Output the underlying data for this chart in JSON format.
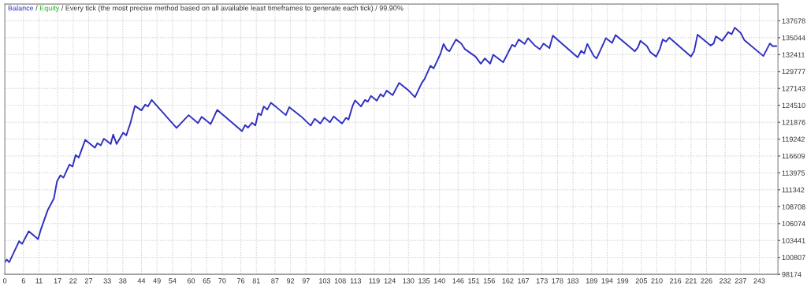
{
  "chart_data": {
    "type": "line",
    "title": "Every tick (the most precise method based on all available least timeframes to generate each tick) / 99.90%",
    "series": [
      {
        "name": "Balance",
        "color": "#3030c0",
        "x": [
          0,
          0.6,
          1.4,
          4.6,
          5.6,
          7.7,
          10.7,
          11.7,
          13.8,
          15.8,
          16.8,
          17.9,
          18.9,
          20.8,
          21.8,
          22.8,
          23.8,
          25.9,
          29.0,
          29.8,
          30.9,
          31.9,
          34.1,
          34.9,
          36.0,
          38.1,
          39.1,
          40.4,
          41.9,
          44.0,
          45.2,
          46.1,
          47.3,
          55.3,
          59.2,
          62.2,
          63.4,
          66.3,
          68.4,
          76.4,
          77.4,
          78.3,
          79.6,
          80.7,
          81.6,
          82.5,
          83.4,
          84.5,
          85.7,
          87.2,
          90.5,
          91.6,
          95.6,
          98.5,
          99.8,
          101.6,
          102.9,
          104.7,
          105.9,
          108.6,
          109.9,
          110.7,
          112.0,
          112.8,
          114.7,
          116.0,
          116.9,
          117.9,
          119.8,
          121.0,
          121.9,
          123.0,
          124.9,
          127.0,
          130.1,
          132.1,
          134.3,
          135.2,
          137.1,
          138.1,
          140.3,
          141.3,
          142.3,
          143.2,
          145.3,
          147.0,
          148.2,
          151.6,
          153.3,
          154.6,
          156.3,
          157.3,
          160.5,
          163.4,
          164.3,
          165.5,
          167.4,
          168.5,
          170.6,
          172.3,
          173.5,
          175.4,
          176.5,
          184.5,
          185.6,
          186.6,
          187.6,
          189.7,
          190.6,
          193.6,
          195.6,
          196.7,
          202.9,
          203.9,
          204.7,
          206.8,
          207.9,
          209.8,
          211.0,
          211.9,
          212.9,
          214.0,
          221.0,
          222.0,
          223.1,
          227.3,
          228.3,
          229.0,
          231.0,
          233.0,
          234.1,
          235.1,
          237.0,
          238.2,
          244.3,
          246.4,
          247.3,
          248.5
        ],
        "values": [
          100020,
          100470,
          100050,
          103330,
          102930,
          104890,
          103660,
          105300,
          108160,
          110000,
          112660,
          113610,
          113240,
          115280,
          114960,
          116750,
          116350,
          119140,
          117910,
          118600,
          118280,
          119300,
          118470,
          119950,
          118470,
          120240,
          119820,
          121670,
          124420,
          123720,
          124610,
          124330,
          125350,
          120980,
          122980,
          121750,
          122730,
          121590,
          123800,
          120490,
          121420,
          121020,
          121790,
          121380,
          123260,
          122980,
          124330,
          123840,
          124910,
          124330,
          122980,
          124210,
          122700,
          121350,
          122400,
          121670,
          122610,
          121870,
          122770,
          121670,
          122570,
          122280,
          124420,
          125280,
          124330,
          125350,
          125070,
          125960,
          125230,
          126260,
          125890,
          126790,
          126090,
          128010,
          126790,
          125770,
          128010,
          128630,
          130680,
          130260,
          132520,
          134070,
          133210,
          132930,
          134770,
          134150,
          133260,
          132100,
          131000,
          131820,
          131000,
          132400,
          131210,
          133950,
          133660,
          134770,
          134070,
          134980,
          133870,
          133260,
          134150,
          133420,
          135380,
          131980,
          133010,
          132600,
          134070,
          132190,
          131820,
          134980,
          134240,
          135470,
          132930,
          133540,
          134560,
          133750,
          132800,
          132100,
          133330,
          134770,
          134440,
          135050,
          132100,
          132930,
          135510,
          133820,
          134150,
          135260,
          134560,
          135910,
          135590,
          136610,
          135790,
          134650,
          132190,
          134150,
          133750,
          133750
        ]
      },
      {
        "name": "Equity",
        "color": "#20b020"
      }
    ],
    "xlim": [
      0,
      249
    ],
    "xticks": [
      0,
      6,
      11,
      17,
      22,
      27,
      33,
      38,
      44,
      49,
      54,
      60,
      65,
      70,
      76,
      81,
      87,
      92,
      97,
      103,
      108,
      113,
      119,
      124,
      130,
      135,
      140,
      146,
      151,
      156,
      162,
      167,
      173,
      178,
      183,
      189,
      194,
      199,
      205,
      210,
      216,
      221,
      226,
      232,
      237,
      243
    ],
    "ylim": [
      98174,
      140300
    ],
    "yticks": [
      98174,
      100807,
      103441,
      106074,
      108708,
      111342,
      113975,
      116609,
      119242,
      121876,
      124510,
      127143,
      129777,
      132411,
      135044,
      137678
    ],
    "annotations": [
      "/",
      "/"
    ],
    "grid": true,
    "legend": "top left",
    "marker": "none",
    "line_style": "solid"
  }
}
